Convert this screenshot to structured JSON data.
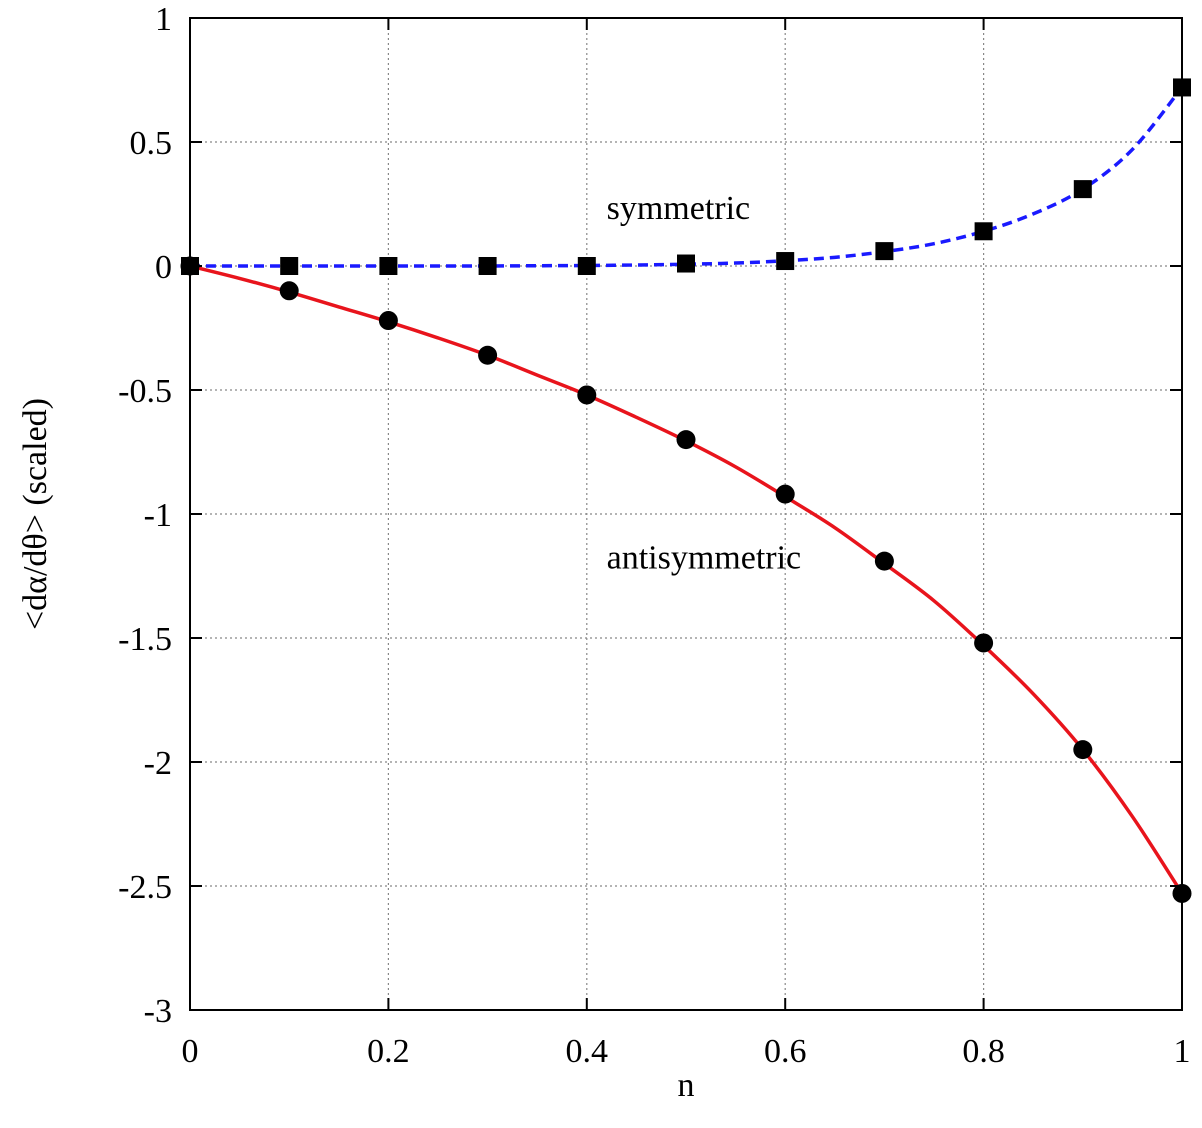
{
  "chart_data": {
    "type": "line",
    "title": "",
    "xlabel": "n",
    "ylabel": "<dα/dθ> (scaled)",
    "xlim": [
      0,
      1
    ],
    "ylim": [
      -3,
      1
    ],
    "x_ticks": [
      0,
      0.2,
      0.4,
      0.6,
      0.8,
      1
    ],
    "x_tick_labels": [
      "0",
      "0.2",
      "0.4",
      "0.6",
      "0.8",
      "1"
    ],
    "y_ticks": [
      1,
      0.5,
      0,
      -0.5,
      -1,
      -1.5,
      -2,
      -2.5,
      -3
    ],
    "y_tick_labels": [
      "1",
      "0.5",
      "0",
      "-0.5",
      "-1",
      "-1.5",
      "-2",
      "-2.5",
      "-3"
    ],
    "grid": true,
    "series": [
      {
        "name": "symmetric",
        "color": "#1a1aff",
        "line_style": "dashed",
        "marker": "square",
        "x": [
          0,
          0.1,
          0.2,
          0.3,
          0.4,
          0.5,
          0.6,
          0.7,
          0.8,
          0.9,
          1.0
        ],
        "y": [
          0,
          0.0,
          0.0,
          0.0,
          0.0,
          0.01,
          0.02,
          0.06,
          0.14,
          0.31,
          0.72
        ],
        "curve": {
          "x": [
            0,
            0.05,
            0.1,
            0.15,
            0.2,
            0.25,
            0.3,
            0.35,
            0.4,
            0.45,
            0.5,
            0.55,
            0.6,
            0.65,
            0.7,
            0.75,
            0.8,
            0.85,
            0.9,
            0.95,
            1.0
          ],
          "y": [
            0,
            0,
            0,
            0,
            0,
            0,
            0,
            0.001,
            0.002,
            0.004,
            0.007,
            0.012,
            0.021,
            0.035,
            0.058,
            0.09,
            0.14,
            0.21,
            0.31,
            0.47,
            0.72
          ]
        }
      },
      {
        "name": "antisymmetric",
        "color": "#e8141c",
        "line_style": "solid",
        "marker": "circle",
        "x": [
          0,
          0.1,
          0.2,
          0.3,
          0.4,
          0.5,
          0.6,
          0.7,
          0.8,
          0.9,
          1.0
        ],
        "y": [
          0,
          -0.1,
          -0.22,
          -0.36,
          -0.52,
          -0.7,
          -0.92,
          -1.19,
          -1.52,
          -1.95,
          -2.53
        ],
        "curve": {
          "x": [
            0,
            0.05,
            0.1,
            0.15,
            0.2,
            0.25,
            0.3,
            0.35,
            0.4,
            0.45,
            0.5,
            0.55,
            0.6,
            0.65,
            0.7,
            0.75,
            0.8,
            0.85,
            0.9,
            0.95,
            1.0
          ],
          "y": [
            0,
            -0.05,
            -0.105,
            -0.165,
            -0.225,
            -0.29,
            -0.36,
            -0.44,
            -0.52,
            -0.61,
            -0.705,
            -0.81,
            -0.93,
            -1.055,
            -1.2,
            -1.35,
            -1.53,
            -1.725,
            -1.95,
            -2.22,
            -2.53
          ]
        }
      }
    ],
    "annotations": [
      {
        "text": "symmetric",
        "x": 0.42,
        "y": 0.19
      },
      {
        "text": "antisymmetric",
        "x": 0.42,
        "y": -1.22
      }
    ]
  }
}
